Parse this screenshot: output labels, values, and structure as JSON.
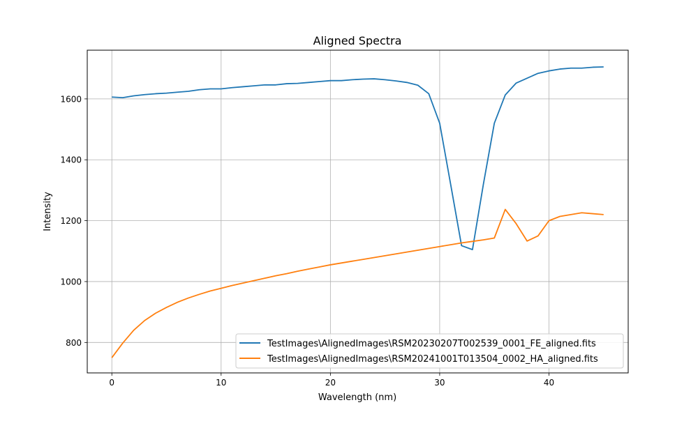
{
  "chart_data": {
    "type": "line",
    "title": "Aligned Spectra",
    "xlabel": "Wavelength (nm)",
    "ylabel": "Intensity",
    "xlim": [
      -2.25,
      47.25
    ],
    "ylim": [
      700,
      1760
    ],
    "xticks": [
      0,
      10,
      20,
      30,
      40
    ],
    "yticks": [
      800,
      1000,
      1200,
      1400,
      1600
    ],
    "grid": true,
    "legend_position": "lower-right",
    "x": [
      0,
      1,
      2,
      3,
      4,
      5,
      6,
      7,
      8,
      9,
      10,
      11,
      12,
      13,
      14,
      15,
      16,
      17,
      18,
      19,
      20,
      21,
      22,
      23,
      24,
      25,
      26,
      27,
      28,
      29,
      30,
      31,
      32,
      33,
      34,
      35,
      36,
      37,
      38,
      39,
      40,
      41,
      42,
      43,
      44,
      45
    ],
    "series": [
      {
        "name": "TestImages\\AlignedImages\\RSM20230207T002539_0001_FE_aligned.fits",
        "color": "#1f77b4",
        "values": [
          1606,
          1604,
          1610,
          1614,
          1617,
          1619,
          1622,
          1625,
          1630,
          1633,
          1633,
          1637,
          1640,
          1643,
          1646,
          1646,
          1650,
          1651,
          1654,
          1657,
          1660,
          1660,
          1663,
          1665,
          1666,
          1663,
          1659,
          1654,
          1645,
          1617,
          1520,
          1320,
          1118,
          1105,
          1320,
          1520,
          1613,
          1652,
          1668,
          1684,
          1692,
          1698,
          1701,
          1701,
          1704,
          1705
        ]
      },
      {
        "name": "TestImages\\AlignedImages\\RSM20241001T013504_0002_HA_aligned.fits",
        "color": "#ff7f0e",
        "values": [
          750,
          798,
          840,
          872,
          896,
          915,
          932,
          946,
          958,
          969,
          978,
          987,
          995,
          1003,
          1011,
          1019,
          1026,
          1034,
          1041,
          1048,
          1055,
          1061,
          1067,
          1073,
          1079,
          1085,
          1091,
          1097,
          1103,
          1109,
          1115,
          1121,
          1127,
          1132,
          1137,
          1143,
          1237,
          1190,
          1133,
          1150,
          1200,
          1214,
          1220,
          1226,
          1223,
          1220
        ]
      }
    ]
  }
}
